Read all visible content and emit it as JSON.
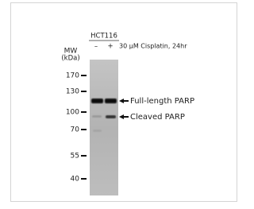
{
  "header": {
    "cell_line": "HCT116",
    "lanes": [
      "–",
      "+"
    ],
    "treatment": "30 µM Cisplatin, 24hr"
  },
  "markers": {
    "title": "MW",
    "unit": "(kDa)",
    "labels": [
      "170",
      "130",
      "100",
      "70",
      "55",
      "40"
    ]
  },
  "bands": {
    "labels": [
      "Full-length PARP",
      "Cleaved PARP"
    ]
  }
}
